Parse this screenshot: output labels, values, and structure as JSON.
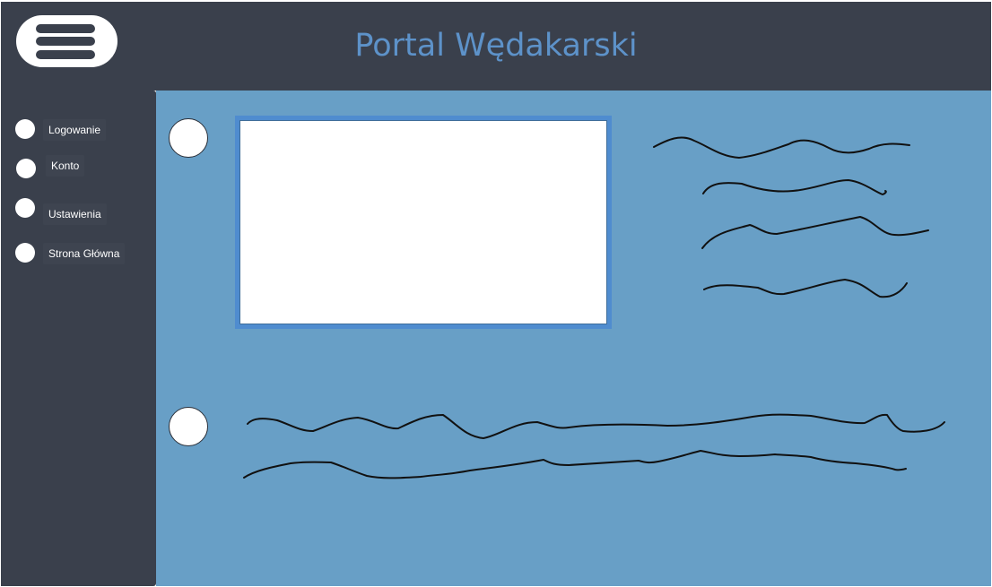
{
  "header": {
    "title": "Portal Wędakarski",
    "menu_icon": "hamburger-menu-icon"
  },
  "sidebar": {
    "items": [
      {
        "label": "Logowanie"
      },
      {
        "label": "Konto"
      },
      {
        "label": "Ustawienia"
      },
      {
        "label": "Strona Główna"
      }
    ]
  },
  "colors": {
    "header_bg": "#3a404c",
    "title": "#5d92c9",
    "main_bg": "#689fc6",
    "frame": "#4f8ccf"
  }
}
